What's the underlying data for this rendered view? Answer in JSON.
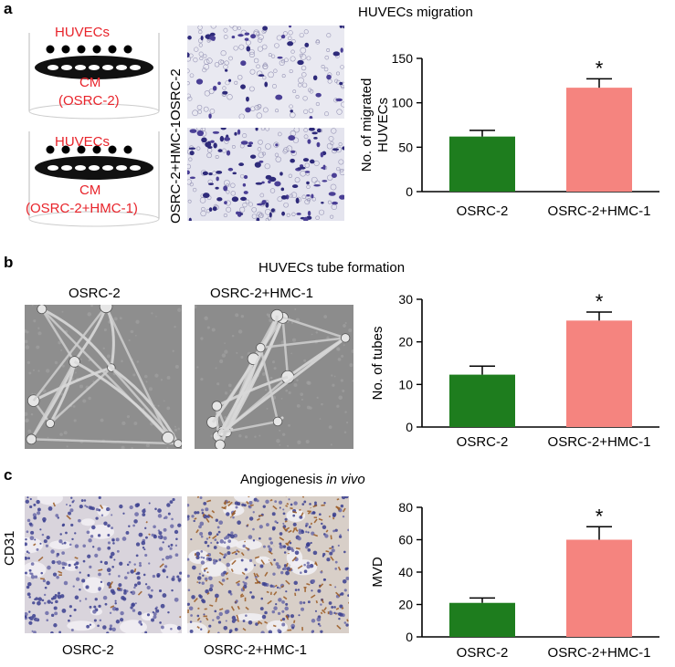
{
  "panel_a": {
    "letter": "a",
    "title": "HUVECs migration",
    "schematic": [
      {
        "cells": "HUVECs",
        "cm": "CM",
        "group": "(OSRC-2)"
      },
      {
        "cells": "HUVECs",
        "cm": "CM",
        "group": "(OSRC-2+HMC-1)"
      }
    ],
    "row_labels": [
      "OSRC-2",
      "OSRC-2+HMC-1"
    ]
  },
  "panel_b": {
    "letter": "b",
    "title": "HUVECs tube formation",
    "image_labels": [
      "OSRC-2",
      "OSRC-2+HMC-1"
    ]
  },
  "panel_c": {
    "letter": "c",
    "title_main": "Angiogenesis ",
    "title_italic": "in vivo",
    "side_label": "CD31",
    "image_labels": [
      "OSRC-2",
      "OSRC-2+HMC-1"
    ]
  },
  "colors": {
    "green": "#1e7d1e",
    "pink": "#f5847f",
    "red_text": "#e8242b",
    "dish": "#111111"
  },
  "chart_data": [
    {
      "type": "bar",
      "categories": [
        "OSRC-2",
        "OSRC-2+HMC-1"
      ],
      "values": [
        62,
        117
      ],
      "errors": [
        7,
        10
      ],
      "significance": [
        "",
        "*"
      ],
      "ylabel": "No. of migrated HUVECs",
      "ylabel_lines": [
        "No. of migrated",
        "HUVECs"
      ],
      "ylim": [
        0,
        150
      ],
      "yticks": [
        0,
        50,
        100,
        150
      ],
      "colors": [
        "#1e7d1e",
        "#f5847f"
      ]
    },
    {
      "type": "bar",
      "categories": [
        "OSRC-2",
        "OSRC-2+HMC-1"
      ],
      "values": [
        12.3,
        25
      ],
      "errors": [
        2,
        2
      ],
      "significance": [
        "",
        "*"
      ],
      "ylabel": "No. of tubes",
      "ylabel_lines": [
        "No. of tubes"
      ],
      "ylim": [
        0,
        30
      ],
      "yticks": [
        0,
        10,
        20,
        30
      ],
      "colors": [
        "#1e7d1e",
        "#f5847f"
      ]
    },
    {
      "type": "bar",
      "categories": [
        "OSRC-2",
        "OSRC-2+HMC-1"
      ],
      "values": [
        21,
        60
      ],
      "errors": [
        3,
        8
      ],
      "significance": [
        "",
        "*"
      ],
      "ylabel": "MVD",
      "ylabel_lines": [
        "MVD"
      ],
      "ylim": [
        0,
        80
      ],
      "yticks": [
        0,
        20,
        40,
        60,
        80
      ],
      "colors": [
        "#1e7d1e",
        "#f5847f"
      ]
    }
  ]
}
